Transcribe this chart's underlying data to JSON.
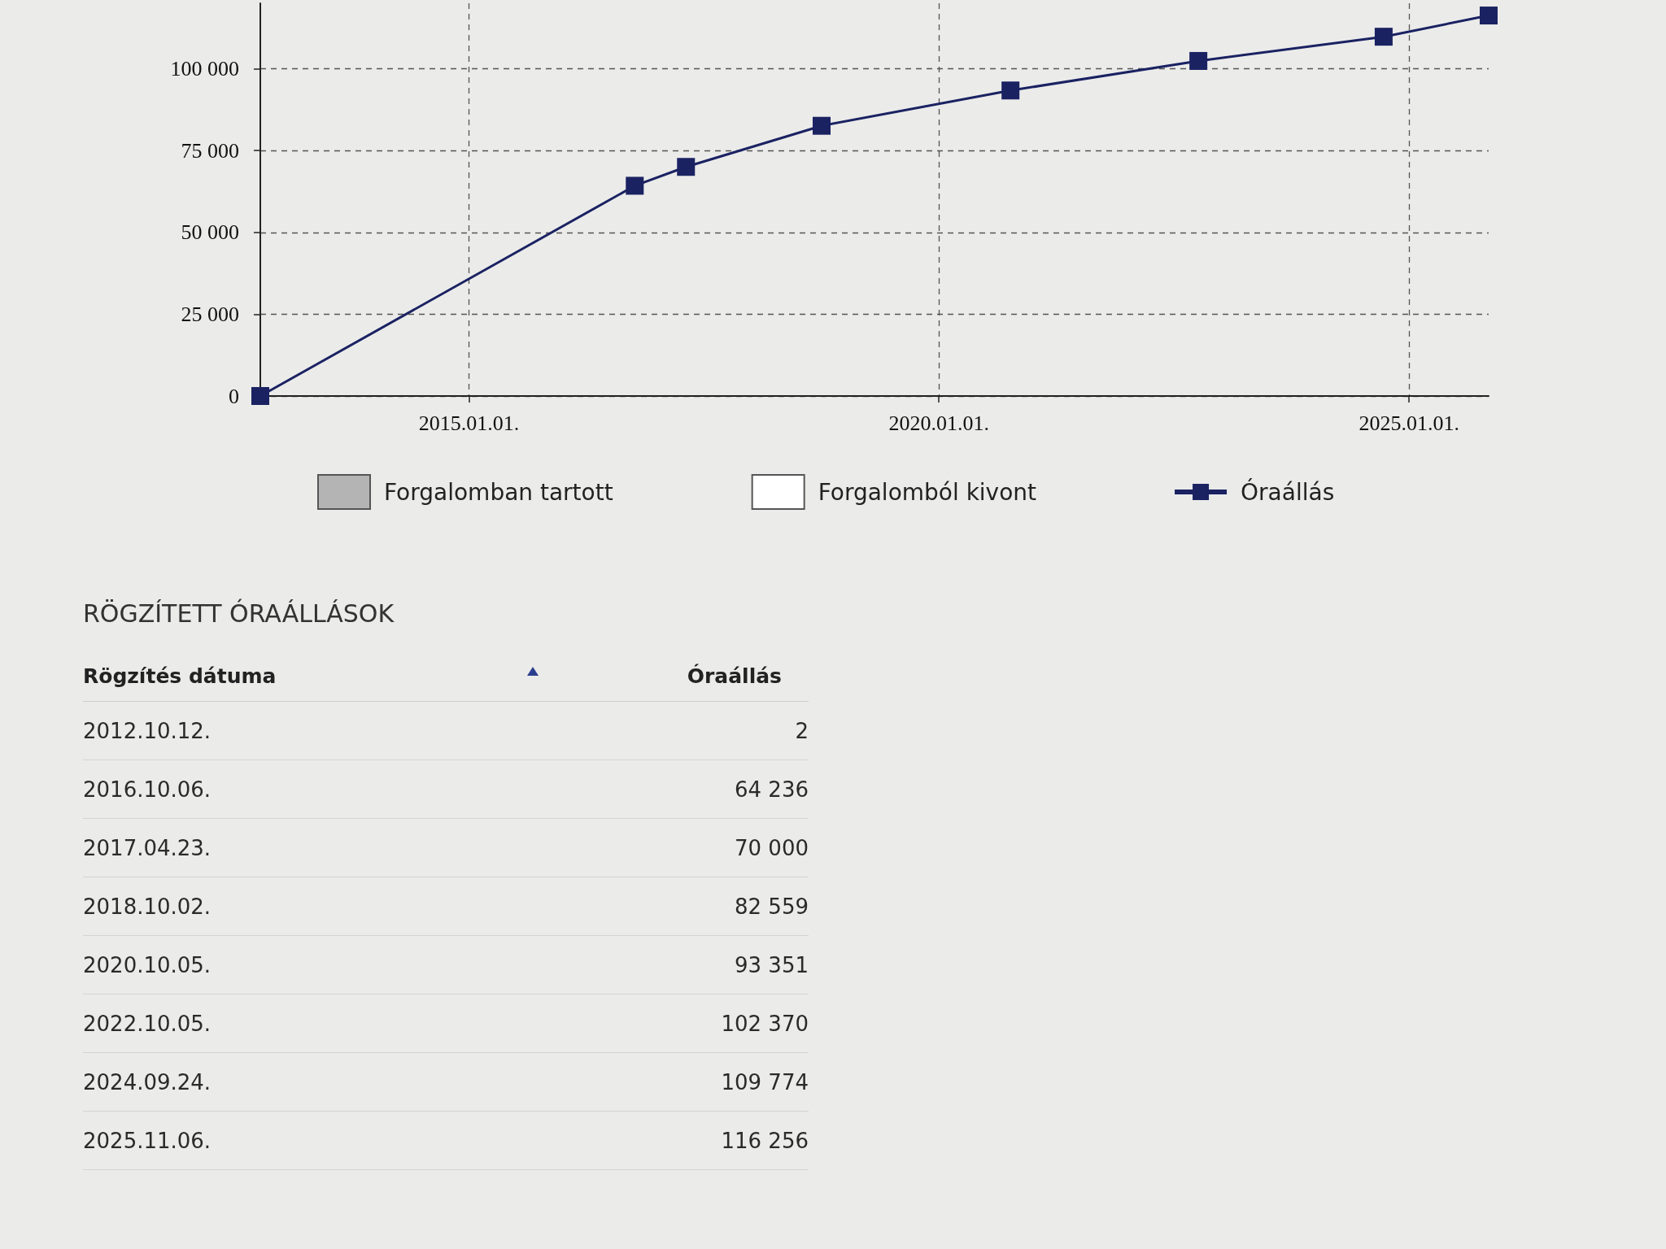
{
  "chart_data": [
    {
      "type": "line",
      "x": [
        "2012-10-12",
        "2016-10-06",
        "2017-04-23",
        "2018-10-02",
        "2020-10-05",
        "2022-10-05",
        "2024-09-24",
        "2025-11-06"
      ],
      "series": [
        {
          "name": "Forgalomban tartott",
          "type": "bar",
          "color": "#b4b4b4",
          "values": [
            null,
            null,
            null,
            null,
            null,
            null,
            null,
            null
          ]
        },
        {
          "name": "Forgalomból kivont",
          "type": "bar",
          "color": "#ffffff",
          "values": [
            null,
            null,
            null,
            null,
            null,
            null,
            null,
            null
          ]
        },
        {
          "name": "Óraállás",
          "color": "#1a2262",
          "values": [
            2,
            64236,
            70000,
            82559,
            93351,
            102370,
            109774,
            116256
          ]
        }
      ],
      "xlim": [
        "2012-10-12",
        "2025-11-06"
      ],
      "xticks": [
        {
          "value": "2015-01-01",
          "label": "2015.01.01."
        },
        {
          "value": "2020-01-01",
          "label": "2020.01.01."
        },
        {
          "value": "2025-01-01",
          "label": "2025.01.01."
        }
      ],
      "ylim": [
        0,
        120000
      ],
      "yticks": [
        0,
        {
          "value": 25000,
          "label": "25 000"
        },
        {
          "value": 50000,
          "label": "50 000"
        },
        {
          "value": 75000,
          "label": "75 000"
        },
        {
          "value": 100000,
          "label": "100 000"
        }
      ],
      "grid": true,
      "legend": "bottom",
      "marker": "square",
      "line_style": "solid"
    },
    {
      "type": "other",
      "title": "RÖGZÍTETT ÓRAÁLLÁSOK",
      "annotations": [
        "Rögzítés dátuma",
        "Óraállás",
        "2012.10.12.",
        "2",
        "2016.10.06.",
        "64 236",
        "2017.04.23.",
        "70 000",
        "2018.10.02.",
        "82 559",
        "2020.10.05.",
        "93 351",
        "2022.10.05.",
        "102 370",
        "2024.09.24.",
        "109 774",
        "2025.11.06.",
        "116 256"
      ]
    }
  ]
}
